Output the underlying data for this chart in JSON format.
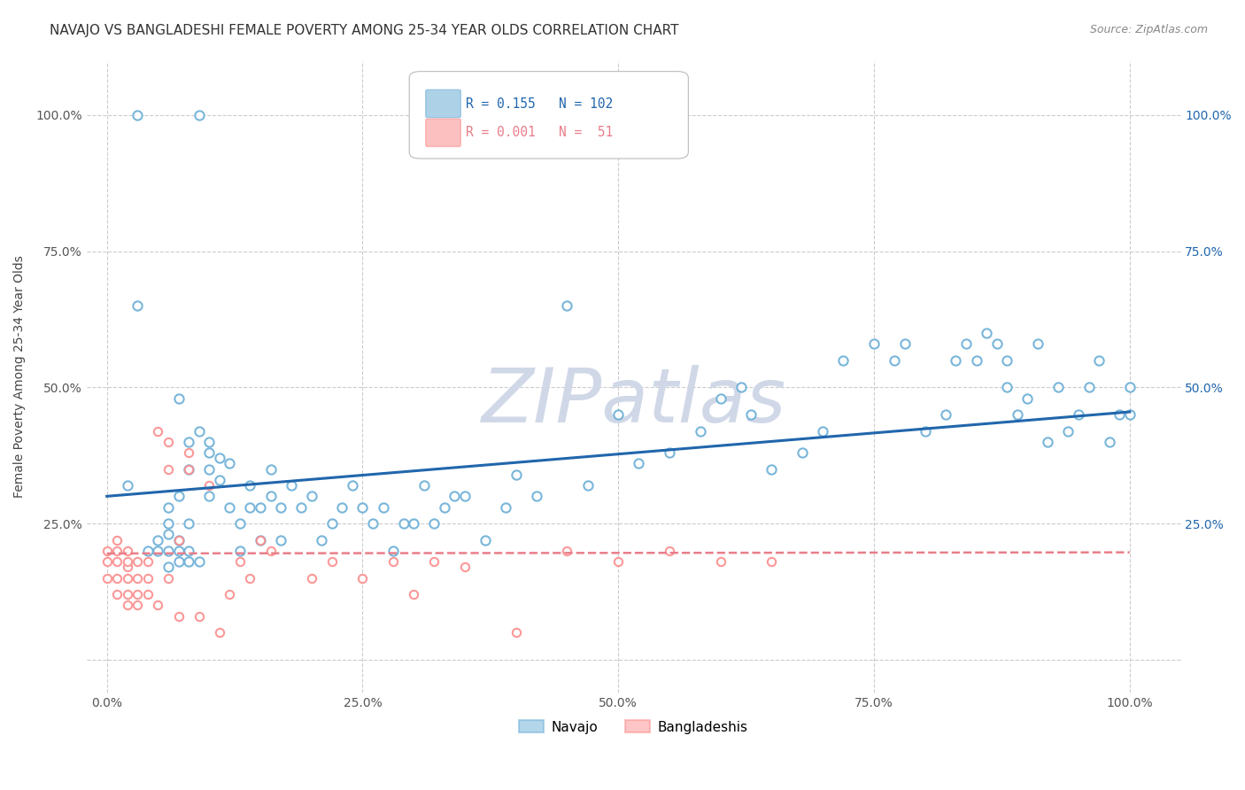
{
  "title": "NAVAJO VS BANGLADESHI FEMALE POVERTY AMONG 25-34 YEAR OLDS CORRELATION CHART",
  "source": "Source: ZipAtlas.com",
  "ylabel": "Female Poverty Among 25-34 Year Olds",
  "watermark": "ZIPatlas",
  "navajo_R": 0.155,
  "navajo_N": 102,
  "bangladeshi_R": 0.001,
  "bangladeshi_N": 51,
  "navajo_color": "#6baed6",
  "bangladeshi_color": "#fc8d8d",
  "navajo_line_color": "#2166ac",
  "bangladeshi_line_color": "#e87e8a",
  "navajo_x": [
    0.02,
    0.03,
    0.04,
    0.05,
    0.05,
    0.06,
    0.06,
    0.06,
    0.06,
    0.06,
    0.07,
    0.07,
    0.07,
    0.07,
    0.07,
    0.08,
    0.08,
    0.08,
    0.08,
    0.08,
    0.09,
    0.09,
    0.1,
    0.1,
    0.1,
    0.1,
    0.11,
    0.11,
    0.12,
    0.12,
    0.13,
    0.13,
    0.14,
    0.14,
    0.15,
    0.15,
    0.16,
    0.16,
    0.17,
    0.17,
    0.18,
    0.19,
    0.2,
    0.21,
    0.22,
    0.23,
    0.24,
    0.25,
    0.26,
    0.27,
    0.28,
    0.29,
    0.3,
    0.31,
    0.32,
    0.33,
    0.34,
    0.35,
    0.37,
    0.39,
    0.4,
    0.42,
    0.45,
    0.47,
    0.5,
    0.52,
    0.55,
    0.58,
    0.6,
    0.62,
    0.63,
    0.65,
    0.68,
    0.7,
    0.72,
    0.75,
    0.77,
    0.78,
    0.8,
    0.82,
    0.83,
    0.84,
    0.85,
    0.86,
    0.87,
    0.88,
    0.88,
    0.89,
    0.9,
    0.91,
    0.92,
    0.93,
    0.94,
    0.95,
    0.96,
    0.97,
    0.98,
    0.99,
    1.0,
    1.0,
    0.03,
    0.09
  ],
  "navajo_y": [
    0.32,
    0.65,
    0.2,
    0.2,
    0.22,
    0.17,
    0.2,
    0.23,
    0.25,
    0.28,
    0.18,
    0.2,
    0.22,
    0.3,
    0.48,
    0.18,
    0.2,
    0.25,
    0.35,
    0.4,
    0.18,
    0.42,
    0.35,
    0.4,
    0.3,
    0.38,
    0.33,
    0.37,
    0.28,
    0.36,
    0.2,
    0.25,
    0.28,
    0.32,
    0.22,
    0.28,
    0.3,
    0.35,
    0.22,
    0.28,
    0.32,
    0.28,
    0.3,
    0.22,
    0.25,
    0.28,
    0.32,
    0.28,
    0.25,
    0.28,
    0.2,
    0.25,
    0.25,
    0.32,
    0.25,
    0.28,
    0.3,
    0.3,
    0.22,
    0.28,
    0.34,
    0.3,
    0.65,
    0.32,
    0.45,
    0.36,
    0.38,
    0.42,
    0.48,
    0.5,
    0.45,
    0.35,
    0.38,
    0.42,
    0.55,
    0.58,
    0.55,
    0.58,
    0.42,
    0.45,
    0.55,
    0.58,
    0.55,
    0.6,
    0.58,
    0.55,
    0.5,
    0.45,
    0.48,
    0.58,
    0.4,
    0.5,
    0.42,
    0.45,
    0.5,
    0.55,
    0.4,
    0.45,
    0.5,
    0.45,
    1.0,
    1.0
  ],
  "bangladeshi_x": [
    0.0,
    0.0,
    0.0,
    0.01,
    0.01,
    0.01,
    0.01,
    0.01,
    0.02,
    0.02,
    0.02,
    0.02,
    0.02,
    0.02,
    0.03,
    0.03,
    0.03,
    0.03,
    0.04,
    0.04,
    0.04,
    0.05,
    0.05,
    0.06,
    0.06,
    0.06,
    0.07,
    0.07,
    0.08,
    0.08,
    0.09,
    0.1,
    0.11,
    0.12,
    0.13,
    0.14,
    0.15,
    0.16,
    0.2,
    0.22,
    0.25,
    0.28,
    0.3,
    0.32,
    0.35,
    0.4,
    0.45,
    0.5,
    0.55,
    0.6,
    0.65
  ],
  "bangladeshi_y": [
    0.15,
    0.18,
    0.2,
    0.12,
    0.15,
    0.18,
    0.2,
    0.22,
    0.1,
    0.12,
    0.15,
    0.17,
    0.18,
    0.2,
    0.1,
    0.12,
    0.15,
    0.18,
    0.12,
    0.15,
    0.18,
    0.1,
    0.42,
    0.15,
    0.35,
    0.4,
    0.08,
    0.22,
    0.35,
    0.38,
    0.08,
    0.32,
    0.05,
    0.12,
    0.18,
    0.15,
    0.22,
    0.2,
    0.15,
    0.18,
    0.15,
    0.18,
    0.12,
    0.18,
    0.17,
    0.05,
    0.2,
    0.18,
    0.2,
    0.18,
    0.18
  ],
  "navajo_intercept": 0.3,
  "navajo_slope": 0.155,
  "bangladeshi_intercept": 0.195,
  "bangladeshi_slope": 0.002,
  "xtick_labels": [
    "0.0%",
    "25.0%",
    "50.0%",
    "75.0%",
    "100.0%"
  ],
  "xtick_positions": [
    0.0,
    0.25,
    0.5,
    0.75,
    1.0
  ],
  "ytick_labels": [
    "25.0%",
    "50.0%",
    "75.0%",
    "100.0%"
  ],
  "ytick_positions": [
    0.25,
    0.5,
    0.75,
    1.0
  ],
  "grid_color": "#cccccc",
  "background_color": "#ffffff",
  "title_fontsize": 11,
  "axis_label_fontsize": 10,
  "tick_fontsize": 10,
  "source_fontsize": 9,
  "watermark_color": "#d0d8e8",
  "watermark_fontsize": 62,
  "legend_navajo": "Navajo",
  "legend_bangladeshi": "Bangladeshis"
}
